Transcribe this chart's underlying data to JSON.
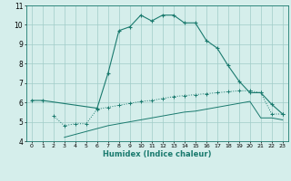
{
  "xlabel": "Humidex (Indice chaleur)",
  "x_values": [
    0,
    1,
    2,
    3,
    4,
    5,
    6,
    7,
    8,
    9,
    10,
    11,
    12,
    13,
    14,
    15,
    16,
    17,
    18,
    19,
    20,
    21,
    22,
    23
  ],
  "line_upper": [
    6.1,
    6.1,
    null,
    null,
    null,
    null,
    5.7,
    7.5,
    9.7,
    9.9,
    10.5,
    10.2,
    10.5,
    10.5,
    10.1,
    10.1,
    9.2,
    8.8,
    7.9,
    7.1,
    6.5,
    6.5,
    5.9,
    5.4
  ],
  "line_mid": [
    null,
    null,
    5.3,
    4.8,
    4.9,
    4.9,
    5.65,
    5.75,
    5.85,
    5.95,
    6.05,
    6.1,
    6.2,
    6.3,
    6.35,
    6.4,
    6.45,
    6.5,
    6.55,
    6.6,
    6.6,
    6.5,
    5.4,
    5.4
  ],
  "line_lower": [
    null,
    null,
    null,
    4.2,
    4.35,
    4.5,
    4.65,
    4.8,
    4.9,
    5.0,
    5.1,
    5.2,
    5.3,
    5.4,
    5.5,
    5.55,
    5.65,
    5.75,
    5.85,
    5.95,
    6.05,
    5.2,
    5.2,
    5.1
  ],
  "line_color": "#1a7a6e",
  "bg_color": "#d5eeeb",
  "grid_color": "#a0ccc8",
  "ylim": [
    4,
    11
  ],
  "xlim": [
    -0.5,
    23.5
  ],
  "yticks": [
    4,
    5,
    6,
    7,
    8,
    9,
    10,
    11
  ],
  "xticks": [
    0,
    1,
    2,
    3,
    4,
    5,
    6,
    7,
    8,
    9,
    10,
    11,
    12,
    13,
    14,
    15,
    16,
    17,
    18,
    19,
    20,
    21,
    22,
    23
  ]
}
